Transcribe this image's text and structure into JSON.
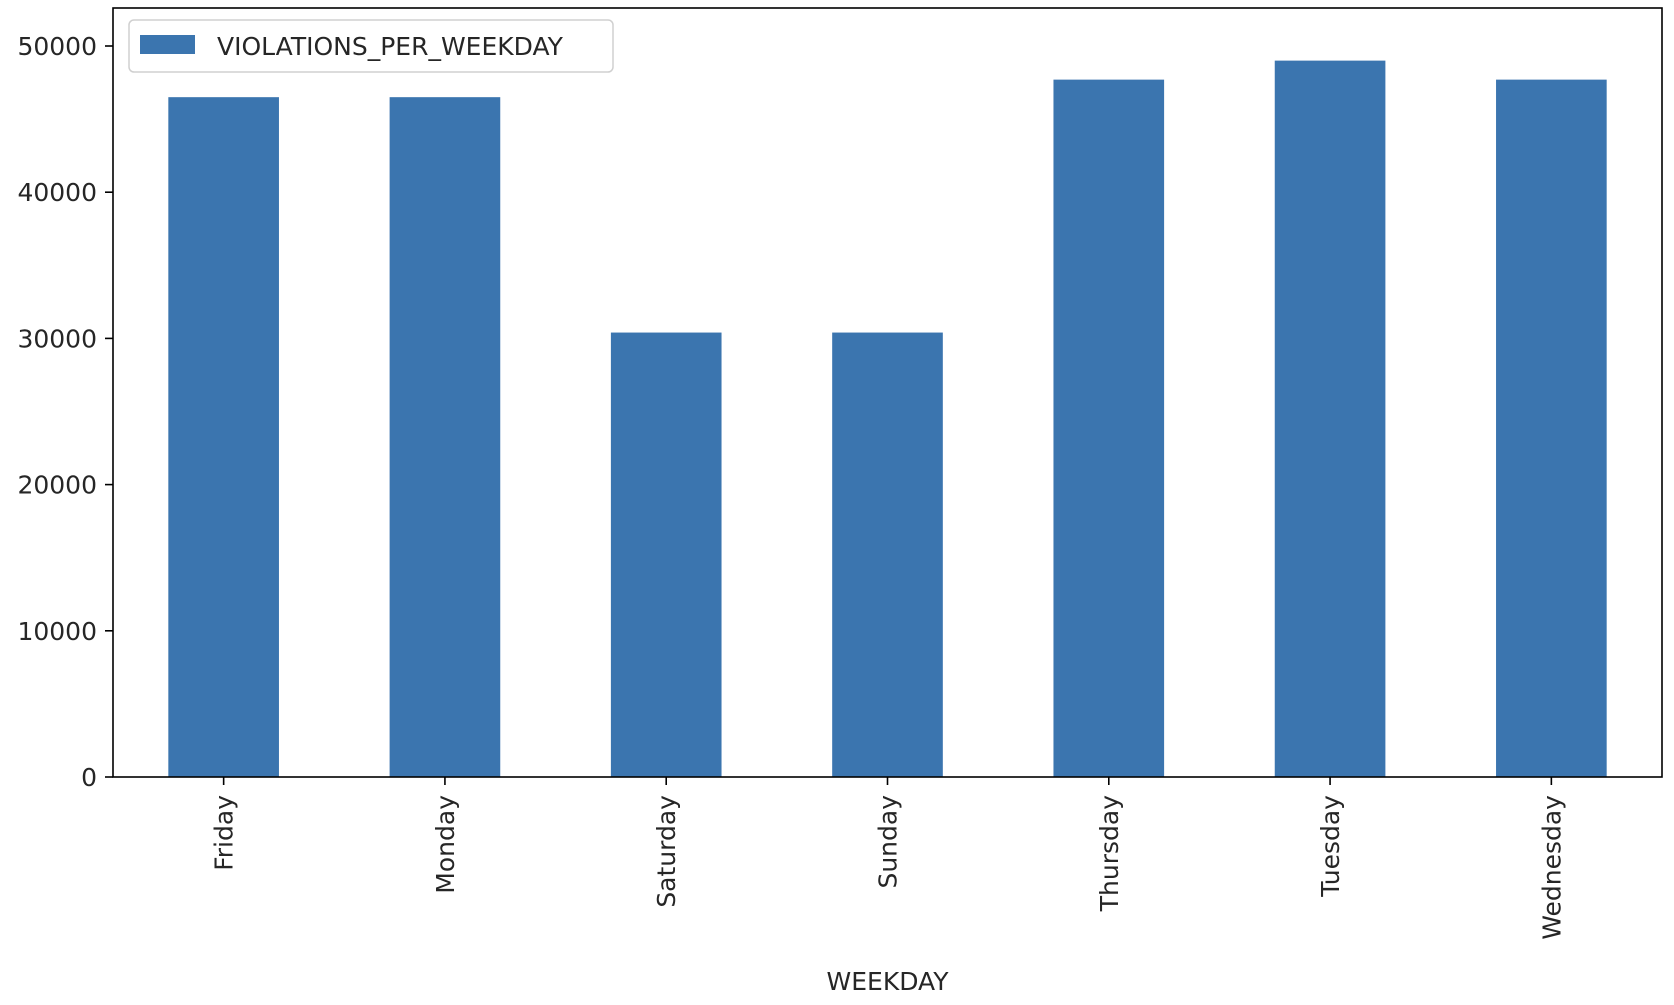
{
  "chart_data": {
    "type": "bar",
    "categories": [
      "Friday",
      "Monday",
      "Saturday",
      "Sunday",
      "Thursday",
      "Tuesday",
      "Wednesday"
    ],
    "series": [
      {
        "name": "VIOLATIONS_PER_WEEKDAY",
        "values": [
          46500,
          46500,
          30400,
          30400,
          47700,
          49000,
          47700
        ],
        "color": "#3b75af"
      }
    ],
    "xlabel": "WEEKDAY",
    "ylabel": "",
    "ylim": [
      0,
      50000
    ],
    "yticks": [
      0,
      10000,
      20000,
      30000,
      40000,
      50000
    ],
    "legend_position": "top-left",
    "grid": false
  }
}
